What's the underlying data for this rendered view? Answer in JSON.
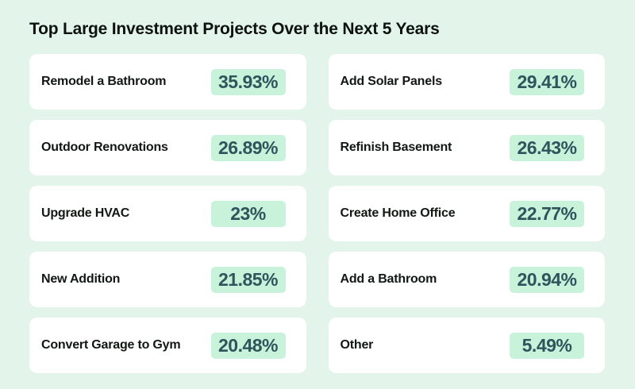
{
  "title": "Top Large Investment Projects Over the Next 5 Years",
  "columns": [
    {
      "items": [
        {
          "label": "Remodel a Bathroom",
          "value": "35.93%"
        },
        {
          "label": "Outdoor Renovations",
          "value": "26.89%"
        },
        {
          "label": "Upgrade HVAC",
          "value": "23%"
        },
        {
          "label": "New Addition",
          "value": "21.85%"
        },
        {
          "label": "Convert Garage to Gym",
          "value": "20.48%"
        }
      ]
    },
    {
      "items": [
        {
          "label": "Add Solar Panels",
          "value": "29.41%"
        },
        {
          "label": "Refinish Basement",
          "value": "26.43%"
        },
        {
          "label": "Create Home Office",
          "value": "22.77%"
        },
        {
          "label": "Add a Bathroom",
          "value": "20.94%"
        },
        {
          "label": "Other",
          "value": "5.49%"
        }
      ]
    }
  ],
  "chart_data": {
    "type": "table",
    "title": "Top Large Investment Projects Over the Next 5 Years",
    "categories": [
      "Remodel a Bathroom",
      "Outdoor Renovations",
      "Upgrade HVAC",
      "New Addition",
      "Convert Garage to Gym",
      "Add Solar Panels",
      "Refinish Basement",
      "Create Home Office",
      "Add a Bathroom",
      "Other"
    ],
    "values": [
      35.93,
      26.89,
      23,
      21.85,
      20.48,
      29.41,
      26.43,
      22.77,
      20.94,
      5.49
    ],
    "value_unit": "%",
    "layout": "two-column card grid; left column rows 1-5, right column rows 6-10; value chips right-aligned"
  },
  "colors": {
    "page_background": "#e3f5ea",
    "card_background": "#ffffff",
    "highlight_background": "#c9f2db",
    "value_text": "#31545c",
    "label_text": "#121714",
    "title_text": "#0d120f"
  }
}
